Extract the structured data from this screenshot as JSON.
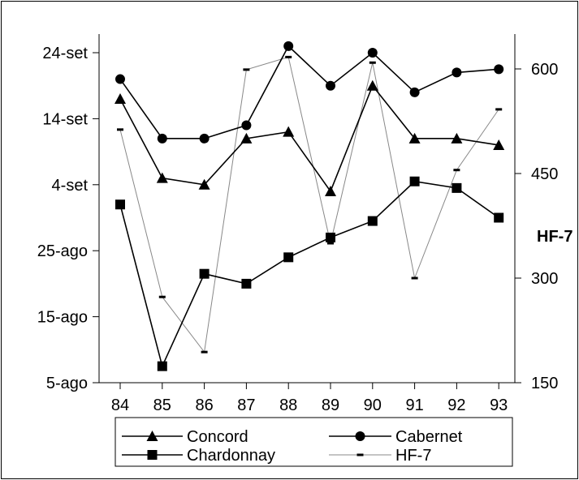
{
  "chart_data": {
    "type": "line",
    "categories": [
      "84",
      "85",
      "86",
      "87",
      "88",
      "89",
      "90",
      "91",
      "92",
      "93"
    ],
    "left_axis": {
      "ticks": [
        {
          "label": "5-ago",
          "value": 0
        },
        {
          "label": "15-ago",
          "value": 10
        },
        {
          "label": "25-ago",
          "value": 20
        },
        {
          "label": "4-set",
          "value": 30
        },
        {
          "label": "14-set",
          "value": 40
        },
        {
          "label": "24-set",
          "value": 50
        }
      ],
      "ylim": [
        0,
        50
      ]
    },
    "right_axis": {
      "label": "HF-7",
      "ticks": [
        150,
        300,
        450,
        600
      ],
      "ylim": [
        150,
        625
      ]
    },
    "series": [
      {
        "name": "Concord",
        "marker": "triangle",
        "color": "#000000",
        "axis": "left",
        "values": [
          43,
          31,
          30,
          37,
          38,
          29,
          45,
          37,
          37,
          36
        ]
      },
      {
        "name": "Cabernet",
        "marker": "circle",
        "color": "#000000",
        "axis": "left",
        "values": [
          46,
          37,
          37,
          39,
          51,
          45,
          50,
          44,
          47,
          47.5
        ]
      },
      {
        "name": "Chardonnay",
        "marker": "square",
        "color": "#000000",
        "axis": "left",
        "values": [
          27,
          2.5,
          16.5,
          15,
          19,
          22,
          24.5,
          30.5,
          29.5,
          25
        ]
      },
      {
        "name": "HF-7",
        "marker": "dash",
        "color": "#888888",
        "axis": "right",
        "values": [
          513,
          273,
          194,
          599,
          617,
          350,
          609,
          300,
          455,
          542
        ]
      }
    ],
    "grid": false,
    "legend_position": "bottom"
  }
}
